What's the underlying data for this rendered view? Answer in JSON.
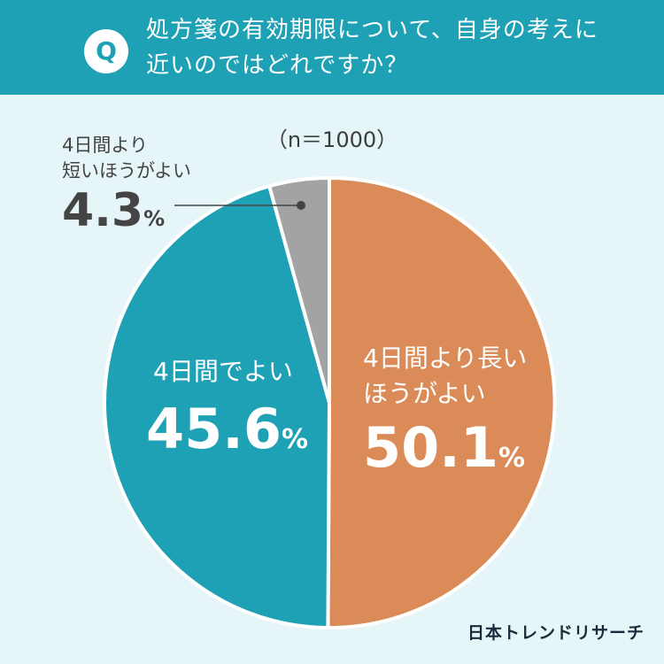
{
  "header": {
    "badge": "Q",
    "question_line1": "処方箋の有効期限について、自身の考えに",
    "question_line2": "近いのではどれですか？"
  },
  "sample_size": "（n＝1000）",
  "brand": "日本トレンドリサーチ",
  "colors": {
    "header_bg": "#1ea0b5",
    "page_bg": "#e6f5f8",
    "slice_long": "#da8b58",
    "slice_day": "#1ea0b5",
    "slice_short": "#a3a3a3",
    "separator": "#ffffff"
  },
  "chart_data": {
    "type": "pie",
    "unit": "%",
    "start": "12 o'clock, clockwise",
    "slices": [
      {
        "name_lines": [
          "4日間より長い",
          "ほうがよい"
        ],
        "value": 50.1,
        "display": "50.1",
        "color": "#da8b58"
      },
      {
        "name_lines": [
          "4日間でよい"
        ],
        "value": 45.6,
        "display": "45.6",
        "color": "#1ea0b5"
      },
      {
        "name_lines": [
          "4日間より",
          "短いほうがよい"
        ],
        "value": 4.3,
        "display": "4.3",
        "color": "#a3a3a3"
      }
    ]
  }
}
